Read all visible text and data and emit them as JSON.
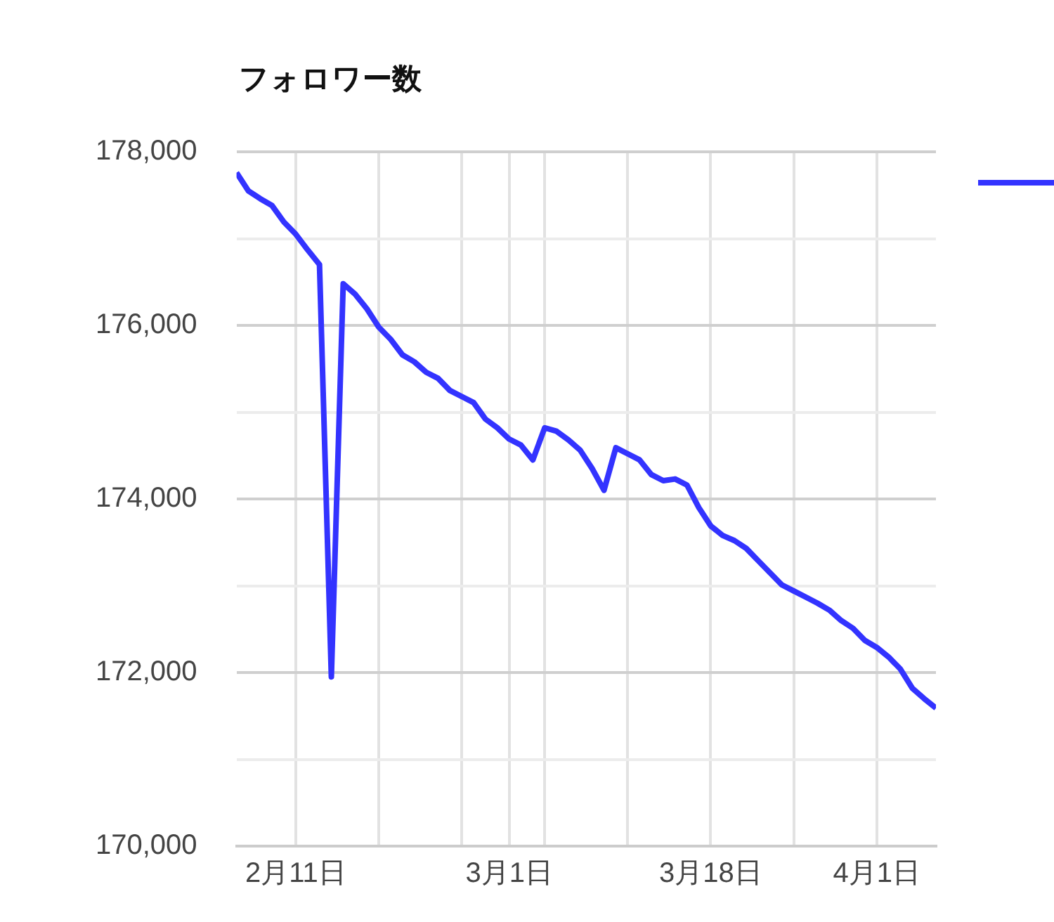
{
  "chart_data": {
    "type": "line",
    "title": "フォロワー数",
    "x": [
      "--02-06",
      "--02-07",
      "--02-08",
      "--02-09",
      "--02-10",
      "--02-11",
      "--02-12",
      "--02-13",
      "--02-14",
      "--02-15",
      "--02-16",
      "--02-17",
      "--02-18",
      "--02-19",
      "--02-20",
      "--02-21",
      "--02-22",
      "--02-23",
      "--02-24",
      "--02-25",
      "--02-26",
      "--02-27",
      "--02-28",
      "--03-01",
      "--03-02",
      "--03-03",
      "--03-04",
      "--03-05",
      "--03-06",
      "--03-07",
      "--03-08",
      "--03-09",
      "--03-10",
      "--03-11",
      "--03-12",
      "--03-13",
      "--03-14",
      "--03-15",
      "--03-16",
      "--03-17",
      "--03-18",
      "--03-19",
      "--03-20",
      "--03-21",
      "--03-22",
      "--03-23",
      "--03-24",
      "--03-25",
      "--03-26",
      "--03-27",
      "--03-28",
      "--03-29",
      "--03-30",
      "--03-31",
      "--04-01",
      "--04-02",
      "--04-03",
      "--04-04",
      "--04-05",
      "--04-06"
    ],
    "series": [
      {
        "color": "#3333ff",
        "values": [
          177760,
          177550,
          177460,
          177380,
          177190,
          177050,
          176870,
          176700,
          171950,
          176480,
          176360,
          176190,
          175980,
          175840,
          175660,
          175580,
          175460,
          175390,
          175250,
          175180,
          175110,
          174920,
          174820,
          174690,
          174620,
          174450,
          174820,
          174780,
          174680,
          174560,
          174350,
          174100,
          174590,
          174520,
          174450,
          174280,
          174210,
          174230,
          174160,
          173900,
          173690,
          173580,
          173520,
          173430,
          173290,
          173150,
          173010,
          172940,
          172870,
          172800,
          172720,
          172600,
          172510,
          172370,
          172290,
          172180,
          172040,
          171820,
          171700,
          171590
        ]
      }
    ],
    "xlim": [
      "--02-06",
      "--04-06"
    ],
    "xticks": [
      {
        "value": "--02-11",
        "label": "2月11日"
      },
      {
        "value": "--02-18",
        "label": null
      },
      {
        "value": "--02-25",
        "label": null
      },
      {
        "value": "--03-01",
        "label": "3月1日"
      },
      {
        "value": "--03-04",
        "label": null
      },
      {
        "value": "--03-11",
        "label": null
      },
      {
        "value": "--03-18",
        "label": "3月18日"
      },
      {
        "value": "--03-25",
        "label": null
      },
      {
        "value": "--04-01",
        "label": "4月1日"
      }
    ],
    "ylim": [
      170000,
      178000
    ],
    "yticks": [
      {
        "value": 170000,
        "label": "170,000"
      },
      {
        "value": 171000,
        "label": null
      },
      {
        "value": 172000,
        "label": "172,000"
      },
      {
        "value": 173000,
        "label": null
      },
      {
        "value": 174000,
        "label": "174,000"
      },
      {
        "value": 175000,
        "label": null
      },
      {
        "value": 176000,
        "label": "176,000"
      },
      {
        "value": 177000,
        "label": null
      },
      {
        "value": 178000,
        "label": "178,000"
      }
    ],
    "grid": true,
    "line_style": "solid"
  }
}
